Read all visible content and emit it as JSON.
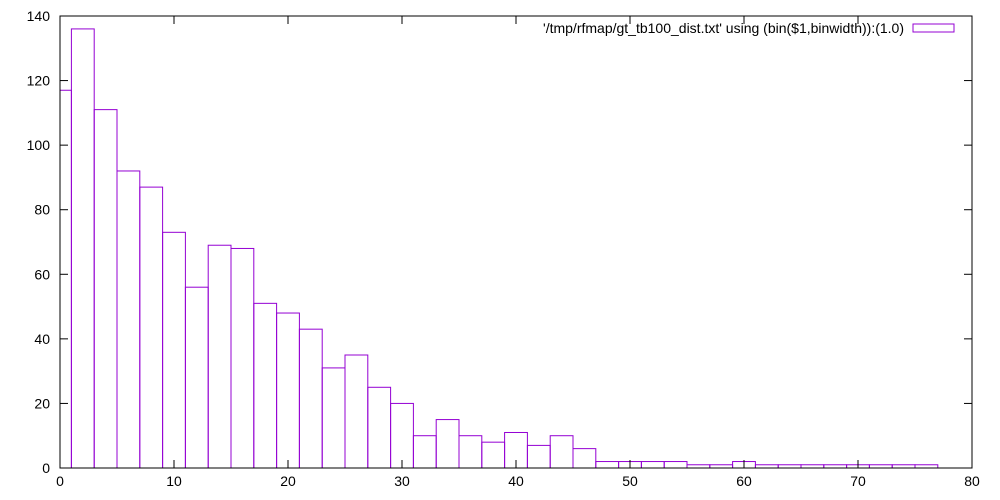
{
  "chart_data": {
    "type": "bar",
    "title": "",
    "xlabel": "",
    "ylabel": "",
    "xlim": [
      0,
      80
    ],
    "ylim": [
      0,
      140
    ],
    "xticks": [
      0,
      10,
      20,
      30,
      40,
      50,
      60,
      70,
      80
    ],
    "yticks": [
      0,
      20,
      40,
      60,
      80,
      100,
      120,
      140
    ],
    "grid": false,
    "legend_position": "top-right",
    "bar_color": "#9400d3",
    "bin_width": 2,
    "series": [
      {
        "name": "'/tmp/rfmap/gt_tb100_dist.txt' using (bin($1,binwidth)):(1.0)",
        "x": [
          0,
          2,
          4,
          6,
          8,
          10,
          12,
          14,
          16,
          18,
          20,
          22,
          24,
          26,
          28,
          30,
          32,
          34,
          36,
          38,
          40,
          42,
          44,
          46,
          48,
          50,
          52,
          54,
          56,
          58,
          60,
          62,
          64,
          66,
          68,
          70,
          72,
          74,
          76
        ],
        "values": [
          117,
          136,
          111,
          92,
          87,
          73,
          56,
          69,
          68,
          51,
          48,
          43,
          31,
          35,
          25,
          20,
          10,
          15,
          10,
          8,
          11,
          7,
          10,
          6,
          2,
          2,
          2,
          2,
          1,
          1,
          2,
          1,
          1,
          1,
          1,
          1,
          1,
          1,
          1
        ]
      }
    ]
  }
}
